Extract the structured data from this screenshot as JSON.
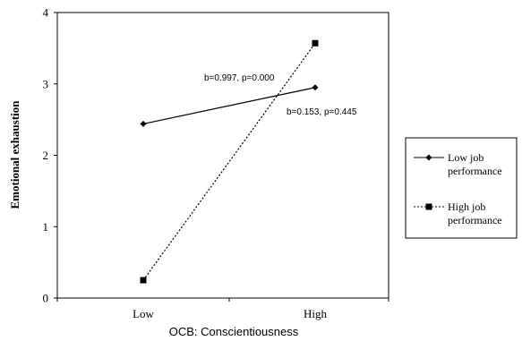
{
  "chart_data": {
    "type": "line",
    "title": "",
    "xlabel": "OCB: Conscientiousness",
    "ylabel": "Emotional exhaustion",
    "categories": [
      "Low",
      "High"
    ],
    "ylim": [
      0,
      4
    ],
    "yticks": [
      "0",
      "1",
      "2",
      "3",
      "4"
    ],
    "grid": false,
    "legend_position": "right",
    "series": [
      {
        "name": "Low job performance",
        "values": [
          2.44,
          2.95
        ],
        "marker": "diamond",
        "line_style": "solid",
        "color": "#000000"
      },
      {
        "name": "High job performance",
        "values": [
          0.25,
          3.57
        ],
        "marker": "square",
        "line_style": "dotted",
        "color": "#000000"
      }
    ],
    "annotations": [
      {
        "text": "b=0.997, p=0.000"
      },
      {
        "text": "b=0.153, p=0.445"
      }
    ]
  }
}
